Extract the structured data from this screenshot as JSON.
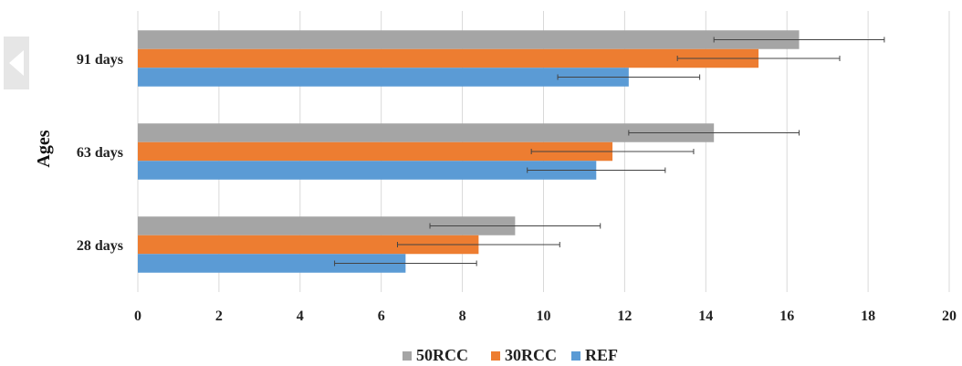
{
  "chart_data": {
    "type": "bar",
    "orientation": "horizontal",
    "categories": [
      "28 days",
      "63 days",
      "91 days"
    ],
    "ylabel": "Ages",
    "xlabel": "",
    "xlim": [
      0,
      20
    ],
    "xticks": [
      0,
      2,
      4,
      6,
      8,
      10,
      12,
      14,
      16,
      18,
      20
    ],
    "grid": "vertical",
    "legend_position": "bottom",
    "series": [
      {
        "name": "50RCC",
        "color": "#A5A5A5",
        "values": [
          9.3,
          14.2,
          16.3
        ],
        "errors": [
          2.1,
          2.1,
          2.1
        ]
      },
      {
        "name": "30RCC",
        "color": "#ED7D31",
        "values": [
          8.4,
          11.7,
          15.3
        ],
        "errors": [
          2.0,
          2.0,
          2.0
        ]
      },
      {
        "name": "REF",
        "color": "#5B9BD5",
        "values": [
          6.6,
          11.3,
          12.1
        ],
        "errors": [
          1.75,
          1.7,
          1.75
        ]
      }
    ]
  }
}
